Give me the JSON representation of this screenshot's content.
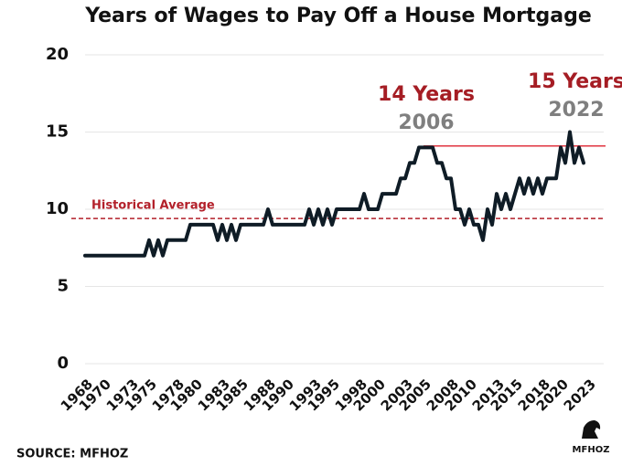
{
  "chart_data": {
    "type": "line",
    "title": "Years of Wages to Pay Off a House Mortgage",
    "x": [
      1968,
      1974.5,
      1975,
      1975.5,
      1976,
      1976.5,
      1977,
      1979,
      1979.5,
      1982,
      1982.5,
      1983,
      1983.5,
      1984,
      1984.5,
      1985,
      1987.5,
      1988,
      1988.5,
      1992,
      1992.5,
      1993,
      1993.5,
      1994,
      1994.5,
      1995,
      1995.5,
      1998,
      1998.5,
      1999,
      2000,
      2000.5,
      2002,
      2002.5,
      2003,
      2003.5,
      2004,
      2004.5,
      2006,
      2006.5,
      2007,
      2007.5,
      2008,
      2008.5,
      2009,
      2009.5,
      2010,
      2010.5,
      2011,
      2011.5,
      2012,
      2012.5,
      2013,
      2013.5,
      2014,
      2014.5,
      2015,
      2015.5,
      2016,
      2016.5,
      2017,
      2017.5,
      2018,
      2018.5,
      2019.5,
      2020,
      2020.5,
      2021,
      2021.5,
      2022,
      2022.5
    ],
    "values": [
      7,
      7,
      8,
      7,
      8,
      7,
      8,
      8,
      9,
      9,
      8,
      9,
      8,
      9,
      8,
      9,
      9,
      10,
      9,
      9,
      10,
      9,
      10,
      9,
      10,
      9,
      10,
      10,
      11,
      10,
      10,
      11,
      11,
      12,
      12,
      13,
      13,
      14,
      14,
      13,
      13,
      12,
      12,
      10,
      10,
      9,
      10,
      9,
      9,
      8,
      10,
      9,
      11,
      10,
      11,
      10,
      11,
      12,
      11,
      12,
      11,
      12,
      11,
      12,
      12,
      14,
      13,
      15,
      13,
      14,
      13
    ],
    "color": "#0f1c26",
    "xlim": [
      1968,
      2023
    ],
    "xticks": [
      1968,
      1970,
      1973,
      1975,
      1978,
      1980,
      1983,
      1985,
      1988,
      1990,
      1993,
      1995,
      1998,
      2000,
      2003,
      2005,
      2008,
      2010,
      2013,
      2015,
      2018,
      2020,
      2023
    ],
    "ylim": [
      0,
      20
    ],
    "yticks": [
      0,
      5,
      10,
      15,
      20
    ],
    "grid": true,
    "reference_lines": [
      {
        "label": "Historical Average",
        "value": 9.4,
        "style": "dashed",
        "color": "#b3202a"
      },
      {
        "value": 14.1,
        "style": "solid",
        "color": "#e0343f",
        "from": 2005
      }
    ],
    "annotations": [
      {
        "text": "14 Years",
        "color": "#a51d24"
      },
      {
        "text": "2006",
        "color": "#7f7f7f"
      },
      {
        "text": "15 Years",
        "color": "#a51d24"
      },
      {
        "text": "2022",
        "color": "#7f7f7f"
      }
    ],
    "source": "SOURCE: MFHOZ",
    "logo": "MFHOZ"
  }
}
